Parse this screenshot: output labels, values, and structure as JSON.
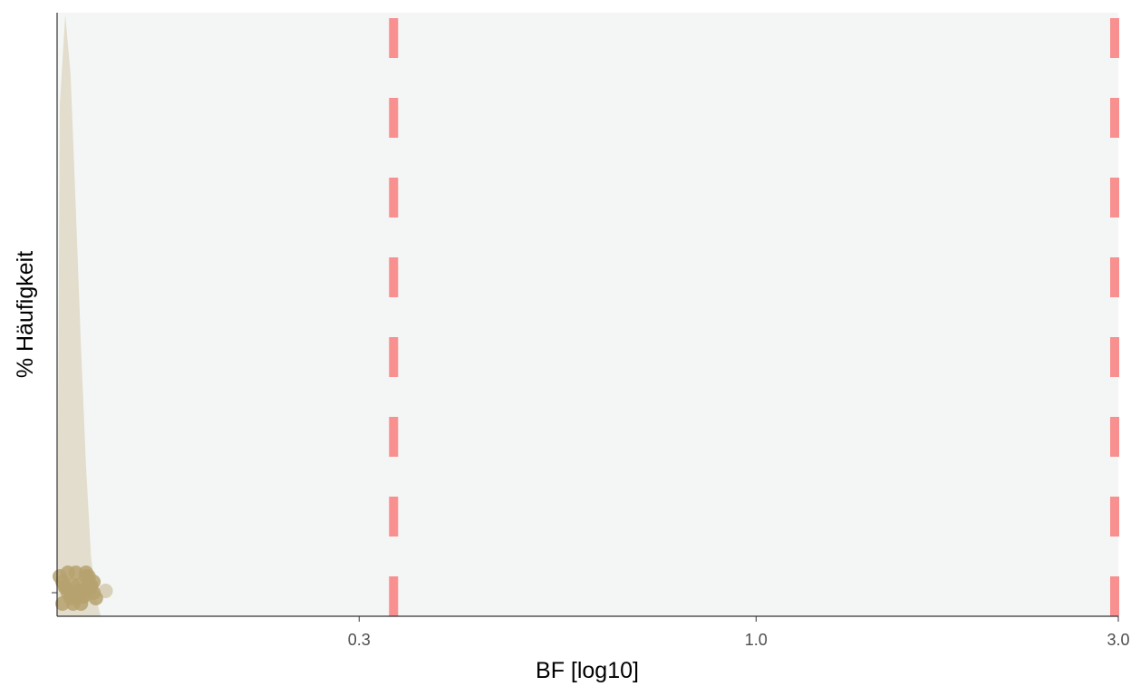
{
  "chart_data": {
    "type": "area",
    "xlabel": "BF [log10]",
    "ylabel": "% Häufigkeit",
    "x_scale": "log10",
    "xlim": [
      0.12,
      3.0
    ],
    "x_ticks": [
      {
        "value": 0.3,
        "label": "0.3"
      },
      {
        "value": 1.0,
        "label": "1.0"
      },
      {
        "value": 3.0,
        "label": "3.0"
      }
    ],
    "reference_lines": [
      {
        "x": 0.333,
        "style": "dashed",
        "color": "#f7908f"
      },
      {
        "x": 3.0,
        "style": "dashed",
        "color": "#f7908f"
      }
    ],
    "density": {
      "color": "#e2ddcc",
      "x": [
        0.12,
        0.121,
        0.123,
        0.125,
        0.127,
        0.129,
        0.131,
        0.133,
        0.135,
        0.137
      ],
      "density": [
        0.0,
        0.85,
        1.0,
        0.9,
        0.68,
        0.45,
        0.25,
        0.1,
        0.03,
        0.0
      ]
    },
    "points": {
      "color": "#b6a26e",
      "x": [
        0.121,
        0.122,
        0.123,
        0.124,
        0.125,
        0.126,
        0.127,
        0.128,
        0.129,
        0.13,
        0.131,
        0.132,
        0.133,
        0.134,
        0.135,
        0.122,
        0.124,
        0.126,
        0.128,
        0.13,
        0.132,
        0.134,
        0.123,
        0.125,
        0.127,
        0.129,
        0.131,
        0.133,
        0.139
      ]
    },
    "background": "#f4f6f5",
    "grid": false,
    "legend": "none"
  }
}
